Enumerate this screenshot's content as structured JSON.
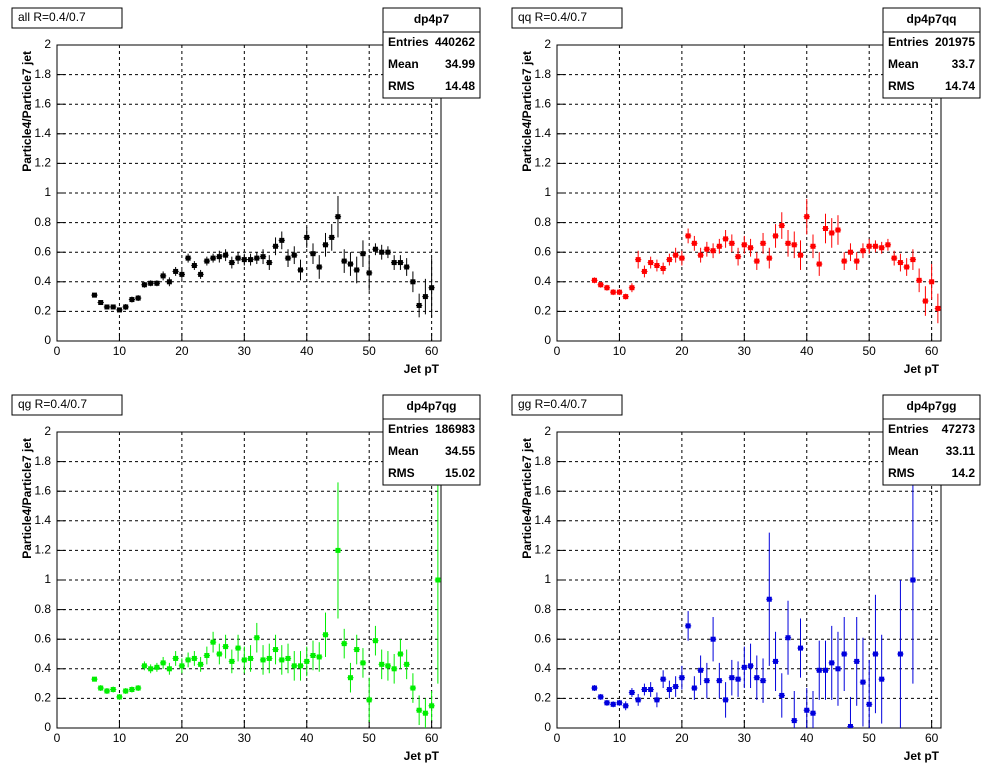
{
  "chart_data": [
    {
      "type": "errorbar",
      "title": "all R=0.4/0.7",
      "x_label": "Jet pT",
      "y_label": "Particle4/Particle7 jet",
      "color": "#000000",
      "stats": {
        "name": "dp4p7",
        "labels": [
          "Entries",
          "Mean",
          "RMS"
        ],
        "values": [
          440262,
          34.99,
          14.48
        ]
      },
      "xlim": [
        0,
        61.5
      ],
      "ylim": [
        0,
        2
      ],
      "xticks": [
        0,
        10,
        20,
        30,
        40,
        50,
        60
      ],
      "yticks": [
        0,
        0.2,
        0.4,
        0.6,
        0.8,
        1,
        1.2,
        1.4,
        1.6,
        1.8,
        2
      ],
      "grid": true,
      "x": [
        6,
        7,
        8,
        9,
        10,
        11,
        12,
        13,
        14,
        15,
        16,
        17,
        18,
        19,
        20,
        21,
        22,
        23,
        24,
        25,
        26,
        27,
        28,
        29,
        30,
        31,
        32,
        33,
        34,
        35,
        36,
        37,
        38,
        39,
        40,
        41,
        42,
        43,
        44,
        45,
        46,
        47,
        48,
        49,
        50,
        51,
        52,
        53,
        54,
        55,
        56,
        57,
        58,
        59,
        60
      ],
      "values": [
        0.31,
        0.26,
        0.23,
        0.23,
        0.21,
        0.23,
        0.28,
        0.29,
        0.38,
        0.39,
        0.39,
        0.44,
        0.4,
        0.47,
        0.45,
        0.56,
        0.51,
        0.45,
        0.54,
        0.56,
        0.57,
        0.58,
        0.53,
        0.56,
        0.55,
        0.55,
        0.56,
        0.57,
        0.53,
        0.64,
        0.68,
        0.56,
        0.58,
        0.48,
        0.7,
        0.59,
        0.5,
        0.65,
        0.7,
        0.84,
        0.54,
        0.52,
        0.48,
        0.59,
        0.46,
        0.62,
        0.6,
        0.6,
        0.53,
        0.53,
        0.5,
        0.4,
        0.24,
        0.3,
        0.36
      ],
      "errors": [
        0.01,
        0.01,
        0.01,
        0.01,
        0.01,
        0.02,
        0.02,
        0.02,
        0.02,
        0.02,
        0.02,
        0.03,
        0.03,
        0.03,
        0.03,
        0.03,
        0.03,
        0.03,
        0.03,
        0.03,
        0.04,
        0.04,
        0.04,
        0.04,
        0.04,
        0.04,
        0.04,
        0.05,
        0.05,
        0.06,
        0.06,
        0.06,
        0.06,
        0.07,
        0.07,
        0.07,
        0.08,
        0.08,
        0.09,
        0.14,
        0.08,
        0.08,
        0.09,
        0.09,
        0.12,
        0.04,
        0.05,
        0.04,
        0.05,
        0.05,
        0.06,
        0.07,
        0.08,
        0.12,
        0.2
      ]
    },
    {
      "type": "errorbar",
      "title": "qq R=0.4/0.7",
      "x_label": "Jet pT",
      "y_label": "Particle4/Particle7 jet",
      "color": "#ff0000",
      "stats": {
        "name": "dp4p7qq",
        "labels": [
          "Entries",
          "Mean",
          "RMS"
        ],
        "values": [
          201975,
          33.7,
          14.74
        ]
      },
      "xlim": [
        0,
        61.5
      ],
      "ylim": [
        0,
        2
      ],
      "xticks": [
        0,
        10,
        20,
        30,
        40,
        50,
        60
      ],
      "yticks": [
        0,
        0.2,
        0.4,
        0.6,
        0.8,
        1,
        1.2,
        1.4,
        1.6,
        1.8,
        2
      ],
      "grid": true,
      "x": [
        6,
        7,
        8,
        9,
        10,
        11,
        12,
        13,
        14,
        15,
        16,
        17,
        18,
        19,
        20,
        21,
        22,
        23,
        24,
        25,
        26,
        27,
        28,
        29,
        30,
        31,
        32,
        33,
        34,
        35,
        36,
        37,
        38,
        39,
        40,
        41,
        42,
        43,
        44,
        45,
        46,
        47,
        48,
        49,
        50,
        51,
        52,
        53,
        54,
        55,
        56,
        57,
        58,
        59,
        60,
        61
      ],
      "values": [
        0.41,
        0.38,
        0.36,
        0.33,
        0.33,
        0.3,
        0.36,
        0.55,
        0.47,
        0.53,
        0.51,
        0.49,
        0.55,
        0.58,
        0.56,
        0.71,
        0.66,
        0.58,
        0.62,
        0.61,
        0.64,
        0.69,
        0.66,
        0.57,
        0.65,
        0.63,
        0.54,
        0.66,
        0.56,
        0.71,
        0.78,
        0.66,
        0.65,
        0.58,
        0.84,
        0.64,
        0.52,
        0.76,
        0.73,
        0.75,
        0.54,
        0.6,
        0.54,
        0.61,
        0.64,
        0.64,
        0.63,
        0.65,
        0.56,
        0.53,
        0.5,
        0.55,
        0.41,
        0.27,
        0.4,
        0.22
      ],
      "errors": [
        0.02,
        0.02,
        0.02,
        0.02,
        0.02,
        0.02,
        0.03,
        0.06,
        0.04,
        0.04,
        0.04,
        0.04,
        0.04,
        0.05,
        0.05,
        0.05,
        0.05,
        0.05,
        0.05,
        0.05,
        0.05,
        0.06,
        0.06,
        0.06,
        0.06,
        0.06,
        0.06,
        0.07,
        0.07,
        0.08,
        0.09,
        0.09,
        0.09,
        0.1,
        0.12,
        0.08,
        0.08,
        0.1,
        0.1,
        0.1,
        0.06,
        0.06,
        0.06,
        0.05,
        0.05,
        0.04,
        0.04,
        0.04,
        0.05,
        0.06,
        0.06,
        0.07,
        0.08,
        0.1,
        0.12,
        0.1
      ]
    },
    {
      "type": "errorbar",
      "title": "qg R=0.4/0.7",
      "x_label": "Jet pT",
      "y_label": "Particle4/Particle7 jet",
      "color": "#00ee00",
      "stats": {
        "name": "dp4p7qg",
        "labels": [
          "Entries",
          "Mean",
          "RMS"
        ],
        "values": [
          186983,
          34.55,
          15.02
        ]
      },
      "xlim": [
        0,
        61.5
      ],
      "ylim": [
        0,
        2
      ],
      "xticks": [
        0,
        10,
        20,
        30,
        40,
        50,
        60
      ],
      "yticks": [
        0,
        0.2,
        0.4,
        0.6,
        0.8,
        1,
        1.2,
        1.4,
        1.6,
        1.8,
        2
      ],
      "grid": true,
      "x": [
        6,
        7,
        8,
        9,
        10,
        11,
        12,
        13,
        14,
        15,
        16,
        17,
        18,
        19,
        20,
        21,
        22,
        23,
        24,
        25,
        26,
        27,
        28,
        29,
        30,
        31,
        32,
        33,
        34,
        35,
        36,
        37,
        38,
        39,
        40,
        41,
        42,
        43,
        45,
        46,
        47,
        48,
        49,
        50,
        51,
        52,
        53,
        54,
        55,
        56,
        57,
        58,
        59,
        60,
        61
      ],
      "values": [
        0.33,
        0.27,
        0.25,
        0.26,
        0.21,
        0.25,
        0.26,
        0.27,
        0.42,
        0.4,
        0.41,
        0.44,
        0.4,
        0.47,
        0.42,
        0.46,
        0.47,
        0.43,
        0.49,
        0.58,
        0.5,
        0.55,
        0.45,
        0.54,
        0.46,
        0.47,
        0.61,
        0.46,
        0.47,
        0.53,
        0.46,
        0.47,
        0.42,
        0.42,
        0.45,
        0.49,
        0.48,
        0.63,
        1.2,
        0.57,
        0.34,
        0.53,
        0.44,
        0.19,
        0.59,
        0.43,
        0.42,
        0.4,
        0.5,
        0.43,
        0.27,
        0.12,
        0.1,
        0.15,
        1.0
      ],
      "errors": [
        0.01,
        0.02,
        0.02,
        0.02,
        0.02,
        0.02,
        0.02,
        0.02,
        0.03,
        0.03,
        0.03,
        0.04,
        0.04,
        0.05,
        0.05,
        0.05,
        0.05,
        0.05,
        0.06,
        0.07,
        0.07,
        0.08,
        0.08,
        0.09,
        0.09,
        0.09,
        0.1,
        0.1,
        0.1,
        0.1,
        0.1,
        0.1,
        0.1,
        0.1,
        0.1,
        0.1,
        0.1,
        0.15,
        0.46,
        0.1,
        0.1,
        0.1,
        0.1,
        0.15,
        0.1,
        0.1,
        0.1,
        0.1,
        0.1,
        0.1,
        0.1,
        0.1,
        0.1,
        0.1,
        0.7
      ]
    },
    {
      "type": "errorbar",
      "title": "gg R=0.4/0.7",
      "x_label": "Jet pT",
      "y_label": "Particle4/Particle7 jet",
      "color": "#0000dd",
      "stats": {
        "name": "dp4p7gg",
        "labels": [
          "Entries",
          "Mean",
          "RMS"
        ],
        "values": [
          47273,
          33.11,
          14.2
        ]
      },
      "xlim": [
        0,
        61.5
      ],
      "ylim": [
        0,
        2
      ],
      "xticks": [
        0,
        10,
        20,
        30,
        40,
        50,
        60
      ],
      "yticks": [
        0,
        0.2,
        0.4,
        0.6,
        0.8,
        1,
        1.2,
        1.4,
        1.6,
        1.8,
        2
      ],
      "grid": true,
      "x": [
        6,
        7,
        8,
        9,
        10,
        11,
        12,
        13,
        14,
        15,
        16,
        17,
        18,
        19,
        20,
        21,
        22,
        23,
        24,
        25,
        26,
        27,
        28,
        29,
        30,
        31,
        32,
        33,
        34,
        35,
        36,
        37,
        38,
        39,
        40,
        41,
        42,
        43,
        44,
        45,
        46,
        47,
        48,
        49,
        50,
        51,
        52,
        55,
        57
      ],
      "values": [
        0.27,
        0.21,
        0.17,
        0.16,
        0.17,
        0.15,
        0.24,
        0.19,
        0.26,
        0.26,
        0.19,
        0.33,
        0.26,
        0.28,
        0.34,
        0.69,
        0.27,
        0.39,
        0.32,
        0.6,
        0.32,
        0.19,
        0.34,
        0.33,
        0.41,
        0.42,
        0.34,
        0.32,
        0.87,
        0.45,
        0.22,
        0.61,
        0.05,
        0.54,
        0.12,
        0.1,
        0.39,
        0.39,
        0.44,
        0.4,
        0.5,
        0.01,
        0.45,
        0.31,
        0.16,
        0.5,
        0.33,
        0.5,
        1.0
      ],
      "errors": [
        0.02,
        0.02,
        0.02,
        0.02,
        0.02,
        0.03,
        0.03,
        0.04,
        0.04,
        0.05,
        0.05,
        0.06,
        0.06,
        0.07,
        0.08,
        0.1,
        0.08,
        0.1,
        0.12,
        0.15,
        0.12,
        0.12,
        0.12,
        0.12,
        0.14,
        0.15,
        0.15,
        0.15,
        0.45,
        0.2,
        0.15,
        0.25,
        0.2,
        0.2,
        0.15,
        0.15,
        0.2,
        0.2,
        0.25,
        0.25,
        0.25,
        0.2,
        0.3,
        0.3,
        0.3,
        0.4,
        0.3,
        0.5,
        0.7
      ]
    }
  ]
}
